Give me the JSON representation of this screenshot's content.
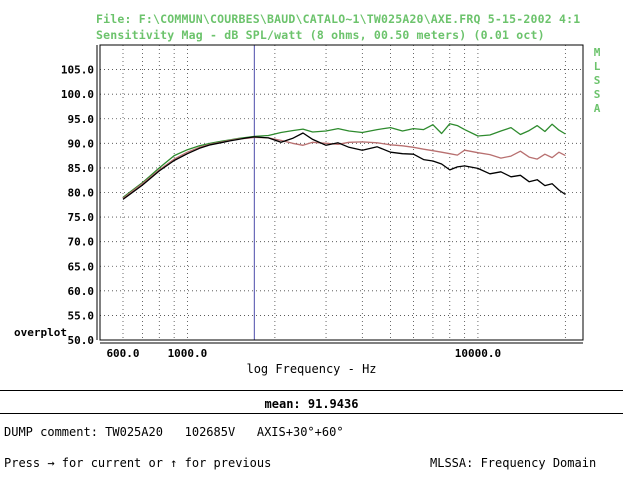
{
  "header": {
    "file_line": "File: F:\\COMMUN\\COURBES\\BAUD\\CATALO~1\\TW025A20\\AXE.FRQ 5-15-2002 4:1",
    "measure_line": "Sensitivity Mag - dB SPL/watt (8 ohms, 00.50 meters) (0.01 oct)"
  },
  "side_label": [
    "M",
    "L",
    "S",
    "S",
    "A"
  ],
  "overplot_label": "overplot",
  "xlabel": "log Frequency - Hz",
  "mean": "mean: 91.9436",
  "comment": "DUMP comment: TW025A20   102685V   AXIS+30°+60°",
  "prompt": "Press → for current or ↑ for previous",
  "mode": "MLSSA: Frequency Domain",
  "colors": {
    "accent_text": "#6cc36c",
    "cursor": "#6a6ab8"
  },
  "chart_data": {
    "type": "line",
    "xscale": "log",
    "xlim": [
      500,
      23000
    ],
    "ylim": [
      50,
      110
    ],
    "yticks": [
      "105.0",
      "100.0",
      "95.0",
      "90.0",
      "85.0",
      "80.0",
      "75.0",
      "70.0",
      "65.0",
      "60.0",
      "55.0",
      "50.0"
    ],
    "xticks": [
      {
        "value": 600,
        "label": "600.0"
      },
      {
        "value": 1000,
        "label": "1000.0"
      },
      {
        "value": 10000,
        "label": "10000.0"
      }
    ],
    "grid": true,
    "cursor_x": 1700,
    "series": [
      {
        "color": "#2e8b2e",
        "x": [
          600,
          700,
          800,
          900,
          1000,
          1100,
          1200,
          1300,
          1400,
          1500,
          1600,
          1700,
          1900,
          2100,
          2300,
          2500,
          2700,
          3000,
          3300,
          3600,
          4000,
          4500,
          5000,
          5500,
          6000,
          6500,
          7000,
          7500,
          8000,
          8500,
          9000,
          10000,
          11000,
          12000,
          13000,
          14000,
          15000,
          16000,
          17000,
          18000,
          19000,
          20000
        ],
        "y": [
          79,
          82,
          85,
          87.5,
          88.7,
          89.5,
          90,
          90.4,
          90.7,
          91,
          91.2,
          91.4,
          91.6,
          92.2,
          92.6,
          92.9,
          92.3,
          92.5,
          93,
          92.5,
          92.2,
          92.8,
          93.2,
          92.5,
          93,
          92.8,
          93.8,
          92,
          94,
          93.6,
          92.8,
          91.5,
          91.7,
          92.5,
          93.2,
          91.8,
          92.6,
          93.6,
          92.4,
          93.9,
          92.7,
          91.9
        ]
      },
      {
        "color": "#b87070",
        "x": [
          600,
          700,
          800,
          900,
          1000,
          1100,
          1200,
          1300,
          1400,
          1500,
          1600,
          1700,
          1900,
          2100,
          2300,
          2500,
          2700,
          3000,
          3300,
          3600,
          4000,
          4500,
          5000,
          5500,
          6000,
          6500,
          7000,
          7500,
          8000,
          8500,
          9000,
          10000,
          11000,
          12000,
          13000,
          14000,
          15000,
          16000,
          17000,
          18000,
          19000,
          20000
        ],
        "y": [
          78.8,
          81.8,
          84.6,
          86.8,
          88.2,
          89.2,
          89.8,
          90.2,
          90.6,
          90.9,
          91,
          91.2,
          91.1,
          90.6,
          90,
          89.6,
          90.2,
          90,
          89.8,
          90.2,
          90.3,
          90.1,
          89.7,
          89.5,
          89.2,
          88.8,
          88.5,
          88.2,
          87.9,
          87.6,
          88.6,
          88.1,
          87.7,
          87,
          87.4,
          88.4,
          87.2,
          86.8,
          87.8,
          87.1,
          88.2,
          87.5
        ]
      },
      {
        "color": "#000000",
        "x": [
          600,
          700,
          800,
          900,
          1000,
          1100,
          1200,
          1300,
          1400,
          1500,
          1600,
          1700,
          1900,
          2100,
          2300,
          2500,
          2700,
          3000,
          3300,
          3600,
          4000,
          4500,
          5000,
          5500,
          6000,
          6500,
          7000,
          7500,
          8000,
          8500,
          9000,
          10000,
          11000,
          12000,
          13000,
          14000,
          15000,
          16000,
          17000,
          18000,
          19000,
          20000
        ],
        "y": [
          78.6,
          81.5,
          84.4,
          86.5,
          87.9,
          89,
          89.7,
          90.1,
          90.5,
          90.8,
          91.1,
          91.3,
          91.1,
          90.2,
          91,
          92.1,
          90.8,
          89.6,
          90.1,
          89.2,
          88.6,
          89.3,
          88.2,
          87.9,
          87.8,
          86.7,
          86.4,
          85.8,
          84.6,
          85.2,
          85.4,
          84.9,
          83.8,
          84.2,
          83.2,
          83.5,
          82.2,
          82.6,
          81.4,
          81.8,
          80.5,
          79.6
        ]
      }
    ]
  }
}
